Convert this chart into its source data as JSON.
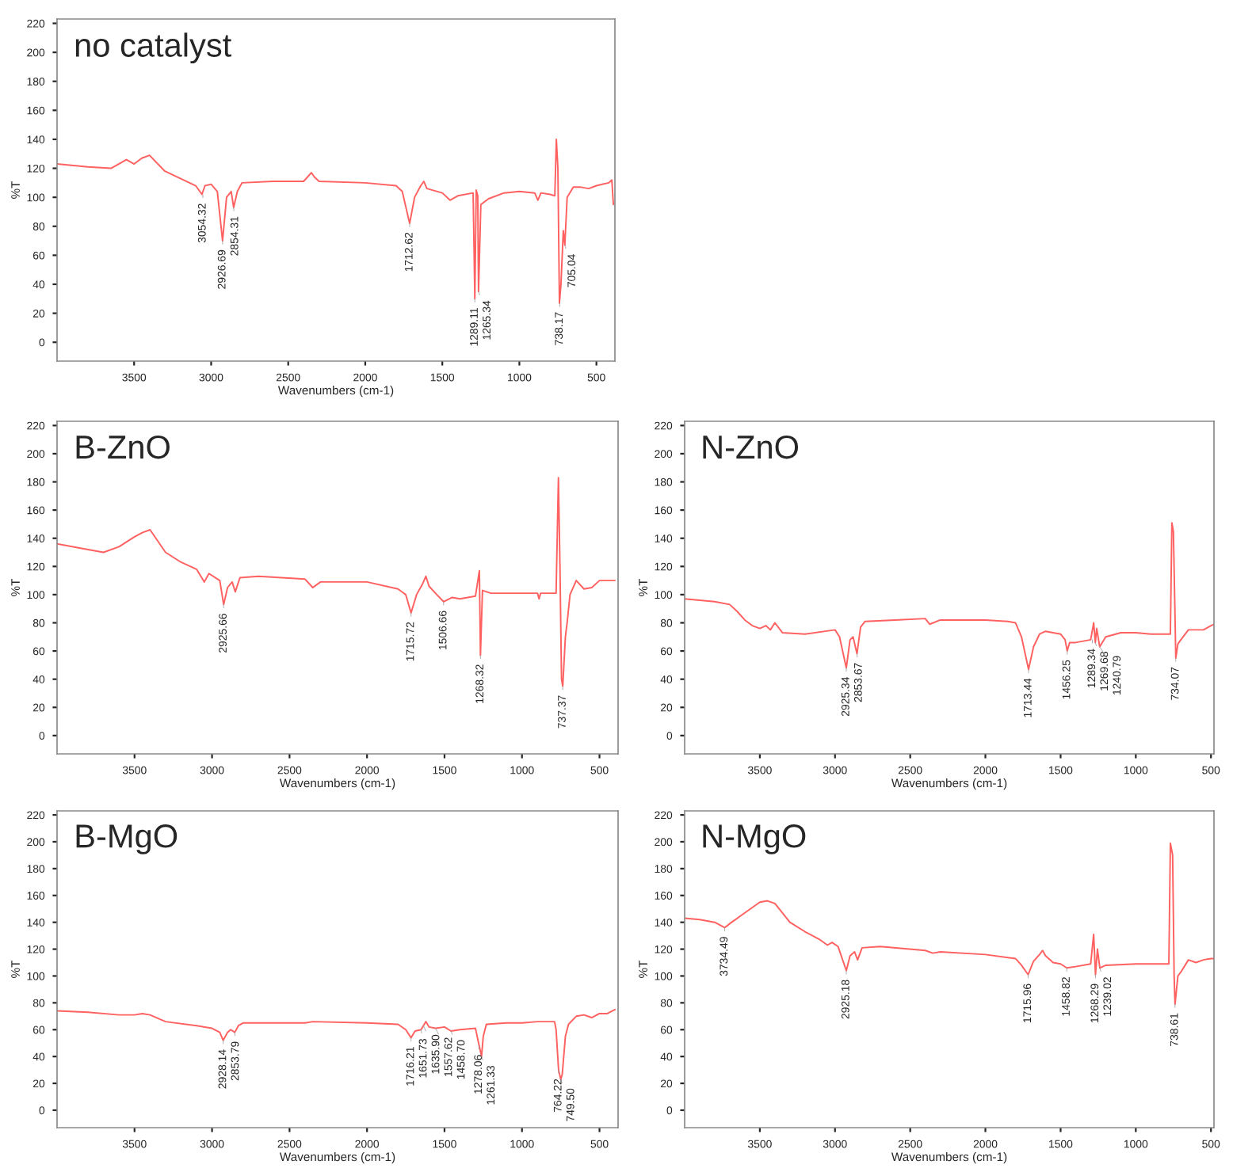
{
  "chart_data": [
    {
      "type": "line",
      "title": "no catalyst",
      "xlabel": "Wavenumbers (cm-1)",
      "ylabel": "%T",
      "xlim": [
        4000,
        380
      ],
      "ylim": [
        -13,
        223
      ],
      "xticks": [
        3500,
        3000,
        2500,
        2000,
        1500,
        1000,
        500
      ],
      "yticks": [
        0,
        20,
        40,
        60,
        80,
        100,
        120,
        140,
        160,
        180,
        200,
        220
      ],
      "grid": false,
      "legend": false,
      "x": [
        4000,
        3800,
        3650,
        3550,
        3500,
        3450,
        3400,
        3300,
        3200,
        3100,
        3060,
        3040,
        3000,
        2960,
        2926,
        2900,
        2870,
        2854,
        2830,
        2800,
        2600,
        2400,
        2350,
        2330,
        2300,
        2000,
        1800,
        1760,
        1712,
        1680,
        1640,
        1620,
        1600,
        1500,
        1450,
        1400,
        1300,
        1289,
        1280,
        1270,
        1265,
        1250,
        1200,
        1100,
        1000,
        900,
        880,
        860,
        800,
        770,
        760,
        750,
        740,
        730,
        715,
        705,
        690,
        650,
        600,
        550,
        500,
        420,
        400,
        390
      ],
      "series": [
        {
          "color": "#ff6060",
          "values": [
            123,
            121,
            120,
            126,
            123,
            127,
            129,
            118,
            113,
            108,
            102,
            108,
            109,
            104,
            70,
            100,
            104,
            93,
            104,
            110,
            111,
            111,
            117,
            114,
            111,
            110,
            108,
            104,
            82,
            100,
            108,
            111,
            106,
            103,
            98,
            101,
            103,
            30,
            105,
            101,
            35,
            95,
            99,
            103,
            104,
            103,
            98,
            103,
            102,
            101,
            140,
            120,
            27,
            40,
            77,
            67,
            100,
            107,
            107,
            106,
            108,
            110,
            112,
            95
          ]
        }
      ],
      "annotations": [
        {
          "text": "3054.32",
          "x": 3054,
          "y": 102
        },
        {
          "text": "2926.69",
          "x": 2926,
          "y": 70
        },
        {
          "text": "2854.31",
          "x": 2854,
          "y": 93
        },
        {
          "text": "1712.62",
          "x": 1712,
          "y": 82
        },
        {
          "text": "1289.11",
          "x": 1289,
          "y": 30
        },
        {
          "text": "1265.34",
          "x": 1265,
          "y": 35
        },
        {
          "text": "738.17",
          "x": 738,
          "y": 27
        },
        {
          "text": "705.04",
          "x": 705,
          "y": 67
        }
      ]
    },
    {
      "type": "line",
      "title": "B-ZnO",
      "xlabel": "Wavenumbers (cm-1)",
      "ylabel": "%T",
      "xlim": [
        4000,
        380
      ],
      "ylim": [
        -13,
        223
      ],
      "xticks": [
        3500,
        3000,
        2500,
        2000,
        1500,
        1000,
        500
      ],
      "yticks": [
        0,
        20,
        40,
        60,
        80,
        100,
        120,
        140,
        160,
        180,
        200,
        220
      ],
      "grid": false,
      "legend": false,
      "x": [
        4000,
        3800,
        3700,
        3600,
        3500,
        3450,
        3400,
        3300,
        3200,
        3100,
        3050,
        3020,
        2950,
        2925,
        2900,
        2870,
        2850,
        2820,
        2700,
        2400,
        2350,
        2300,
        2000,
        1800,
        1750,
        1716,
        1680,
        1640,
        1620,
        1600,
        1550,
        1506,
        1450,
        1400,
        1300,
        1275,
        1268,
        1255,
        1200,
        1000,
        900,
        890,
        880,
        780,
        765,
        755,
        745,
        737,
        720,
        710,
        690,
        650,
        600,
        550,
        500,
        400
      ],
      "series": [
        {
          "color": "#ff6060",
          "values": [
            136,
            132,
            130,
            134,
            141,
            144,
            146,
            130,
            123,
            118,
            109,
            115,
            110,
            93,
            105,
            109,
            102,
            112,
            113,
            111,
            105,
            109,
            109,
            104,
            100,
            87,
            100,
            108,
            113,
            106,
            100,
            95,
            98,
            97,
            99,
            117,
            57,
            103,
            101,
            101,
            101,
            97,
            101,
            101,
            183,
            120,
            40,
            35,
            70,
            79,
            100,
            110,
            104,
            105,
            110,
            110
          ]
        }
      ],
      "annotations": [
        {
          "text": "2925.66",
          "x": 2925,
          "y": 93
        },
        {
          "text": "1715.72",
          "x": 1716,
          "y": 87
        },
        {
          "text": "1506.66",
          "x": 1506,
          "y": 95
        },
        {
          "text": "1268.32",
          "x": 1268,
          "y": 57
        },
        {
          "text": "737.37",
          "x": 737,
          "y": 35
        }
      ]
    },
    {
      "type": "line",
      "title": "N-ZnO",
      "xlabel": "Wavenumbers (cm-1)",
      "ylabel": "%T",
      "xlim": [
        4000,
        480
      ],
      "ylim": [
        -13,
        223
      ],
      "xticks": [
        3500,
        3000,
        2500,
        2000,
        1500,
        1000,
        500
      ],
      "yticks": [
        0,
        20,
        40,
        60,
        80,
        100,
        120,
        140,
        160,
        180,
        200,
        220
      ],
      "grid": false,
      "legend": false,
      "x": [
        4000,
        3900,
        3800,
        3700,
        3650,
        3600,
        3550,
        3500,
        3460,
        3430,
        3400,
        3350,
        3200,
        3000,
        2970,
        2925,
        2900,
        2880,
        2854,
        2830,
        2800,
        2600,
        2400,
        2370,
        2300,
        2000,
        1850,
        1800,
        1760,
        1713,
        1680,
        1640,
        1600,
        1500,
        1470,
        1456,
        1440,
        1400,
        1300,
        1280,
        1269,
        1260,
        1240,
        1200,
        1100,
        1000,
        900,
        770,
        760,
        750,
        740,
        734,
        720,
        700,
        650,
        600,
        550,
        500,
        480
      ],
      "series": [
        {
          "color": "#ff6060",
          "values": [
            97,
            96,
            95,
            93,
            88,
            82,
            78,
            76,
            78,
            75,
            80,
            73,
            72,
            75,
            70,
            48,
            68,
            70,
            58,
            77,
            81,
            82,
            83,
            79,
            82,
            82,
            81,
            80,
            70,
            47,
            63,
            72,
            74,
            72,
            68,
            60,
            66,
            66,
            68,
            80,
            66,
            76,
            63,
            70,
            73,
            73,
            72,
            72,
            151,
            145,
            90,
            55,
            65,
            68,
            75,
            75,
            75,
            78,
            79
          ]
        }
      ],
      "annotations": [
        {
          "text": "2925.34",
          "x": 2925,
          "y": 48
        },
        {
          "text": "2853.67",
          "x": 2854,
          "y": 58
        },
        {
          "text": "1713.44",
          "x": 1713,
          "y": 47
        },
        {
          "text": "1456.25",
          "x": 1456,
          "y": 60
        },
        {
          "text": "1289.34",
          "x": 1289,
          "y": 68
        },
        {
          "text": "1269.68",
          "x": 1269,
          "y": 66
        },
        {
          "text": "1240.79",
          "x": 1240,
          "y": 63
        },
        {
          "text": "734.07",
          "x": 734,
          "y": 55
        }
      ]
    },
    {
      "type": "line",
      "title": "B-MgO",
      "xlabel": "Wavenumbers (cm-1)",
      "ylabel": "%T",
      "xlim": [
        4000,
        380
      ],
      "ylim": [
        -13,
        223
      ],
      "xticks": [
        3500,
        3000,
        2500,
        2000,
        1500,
        1000,
        500
      ],
      "yticks": [
        0,
        20,
        40,
        60,
        80,
        100,
        120,
        140,
        160,
        180,
        200,
        220
      ],
      "grid": false,
      "legend": false,
      "x": [
        4000,
        3800,
        3600,
        3500,
        3450,
        3400,
        3300,
        3100,
        3000,
        2950,
        2928,
        2900,
        2880,
        2853,
        2830,
        2800,
        2400,
        2350,
        2000,
        1800,
        1750,
        1716,
        1690,
        1651,
        1636,
        1620,
        1600,
        1557,
        1500,
        1458,
        1400,
        1300,
        1280,
        1270,
        1261,
        1250,
        1230,
        1100,
        1000,
        900,
        790,
        780,
        764,
        750,
        740,
        720,
        700,
        650,
        600,
        550,
        500,
        450,
        400
      ],
      "series": [
        {
          "color": "#ff6060",
          "values": [
            74,
            73,
            71,
            71,
            72,
            71,
            66,
            63,
            61,
            58,
            52,
            58,
            60,
            58,
            63,
            65,
            65,
            66,
            65,
            64,
            60,
            54,
            59,
            60,
            63,
            66,
            62,
            61,
            62,
            59,
            60,
            61,
            50,
            45,
            40,
            55,
            64,
            65,
            65,
            66,
            66,
            60,
            30,
            23,
            27,
            55,
            64,
            70,
            71,
            69,
            72,
            72,
            75
          ]
        }
      ],
      "annotations": [
        {
          "text": "2928.14",
          "x": 2928,
          "y": 52
        },
        {
          "text": "2853.79",
          "x": 2853,
          "y": 58
        },
        {
          "text": "1716.21",
          "x": 1716,
          "y": 54
        },
        {
          "text": "1651.73",
          "x": 1651,
          "y": 60
        },
        {
          "text": "1635.90",
          "x": 1636,
          "y": 63
        },
        {
          "text": "1557.62",
          "x": 1557,
          "y": 61
        },
        {
          "text": "1458.70",
          "x": 1458,
          "y": 59
        },
        {
          "text": "1278.06",
          "x": 1278,
          "y": 48
        },
        {
          "text": "1261.33",
          "x": 1261,
          "y": 40
        },
        {
          "text": "764.22",
          "x": 764,
          "y": 30
        },
        {
          "text": "749.50",
          "x": 750,
          "y": 23
        }
      ]
    },
    {
      "type": "line",
      "title": "N-MgO",
      "xlabel": "Wavenumbers (cm-1)",
      "ylabel": "%T",
      "xlim": [
        4000,
        480
      ],
      "ylim": [
        -13,
        223
      ],
      "xticks": [
        3500,
        3000,
        2500,
        2000,
        1500,
        1000,
        500
      ],
      "yticks": [
        0,
        20,
        40,
        60,
        80,
        100,
        120,
        140,
        160,
        180,
        200,
        220
      ],
      "grid": false,
      "legend": false,
      "x": [
        4000,
        3900,
        3800,
        3734,
        3700,
        3600,
        3500,
        3450,
        3400,
        3300,
        3200,
        3100,
        3050,
        3020,
        2980,
        2925,
        2900,
        2870,
        2850,
        2820,
        2700,
        2400,
        2350,
        2300,
        2000,
        1800,
        1760,
        1716,
        1680,
        1640,
        1620,
        1600,
        1550,
        1500,
        1459,
        1400,
        1300,
        1280,
        1268,
        1255,
        1239,
        1200,
        1000,
        780,
        770,
        755,
        745,
        739,
        720,
        700,
        650,
        600,
        550,
        500,
        480
      ],
      "series": [
        {
          "color": "#ff6060",
          "values": [
            143,
            142,
            140,
            136,
            139,
            147,
            155,
            156,
            154,
            140,
            133,
            127,
            123,
            125,
            122,
            104,
            115,
            118,
            112,
            121,
            122,
            119,
            117,
            118,
            116,
            113,
            108,
            101,
            111,
            116,
            119,
            115,
            110,
            109,
            106,
            107,
            109,
            131,
            101,
            120,
            106,
            108,
            109,
            109,
            199,
            190,
            100,
            79,
            100,
            103,
            112,
            110,
            112,
            113,
            113
          ]
        }
      ],
      "annotations": [
        {
          "text": "3734.49",
          "x": 3734,
          "y": 136
        },
        {
          "text": "2925.18",
          "x": 2925,
          "y": 104
        },
        {
          "text": "1715.96",
          "x": 1716,
          "y": 101
        },
        {
          "text": "1458.82",
          "x": 1459,
          "y": 106
        },
        {
          "text": "1268.29",
          "x": 1268,
          "y": 101
        },
        {
          "text": "1239.02",
          "x": 1239,
          "y": 106
        },
        {
          "text": "738.61",
          "x": 739,
          "y": 79
        }
      ]
    }
  ]
}
